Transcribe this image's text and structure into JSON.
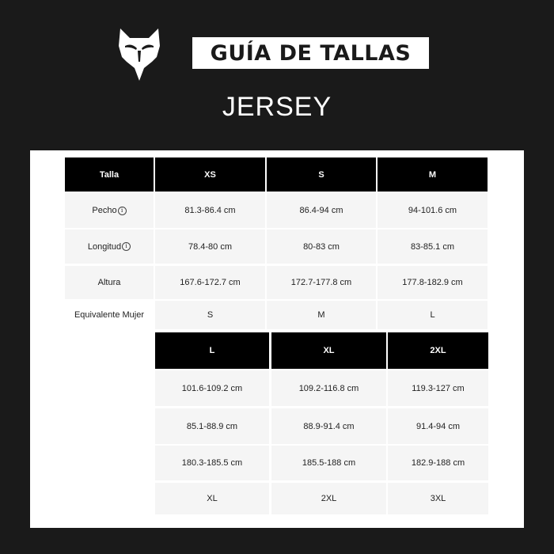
{
  "header": {
    "title": "GUÍA DE TALLAS",
    "subtitle": "JERSEY",
    "logo_icon": "fox-head-icon"
  },
  "colors": {
    "background": "#1a1a1a",
    "header_cell": "#000000",
    "data_cell": "#f5f5f5"
  },
  "table_top": {
    "row_label_header": "Talla",
    "sizes": [
      "XS",
      "S",
      "M"
    ],
    "row_labels": [
      "Pecho",
      "Longitud",
      "Altura",
      "Equivalente Mujer"
    ],
    "row_info_icons": [
      true,
      true,
      false,
      false
    ],
    "rows": [
      [
        "81.3-86.4 cm",
        "86.4-94 cm",
        "94-101.6 cm"
      ],
      [
        "78.4-80 cm",
        "80-83 cm",
        "83-85.1 cm"
      ],
      [
        "167.6-172.7 cm",
        "172.7-177.8 cm",
        "177.8-182.9 cm"
      ],
      [
        "S",
        "M",
        "L"
      ]
    ]
  },
  "table_bottom": {
    "sizes": [
      "L",
      "XL",
      "2XL"
    ],
    "rows": [
      [
        "101.6-109.2 cm",
        "109.2-116.8 cm",
        "119.3-127 cm"
      ],
      [
        "85.1-88.9 cm",
        "88.9-91.4 cm",
        "91.4-94 cm"
      ],
      [
        "180.3-185.5 cm",
        "185.5-188 cm",
        "182.9-188 cm"
      ],
      [
        "XL",
        "2XL",
        "3XL"
      ]
    ]
  }
}
